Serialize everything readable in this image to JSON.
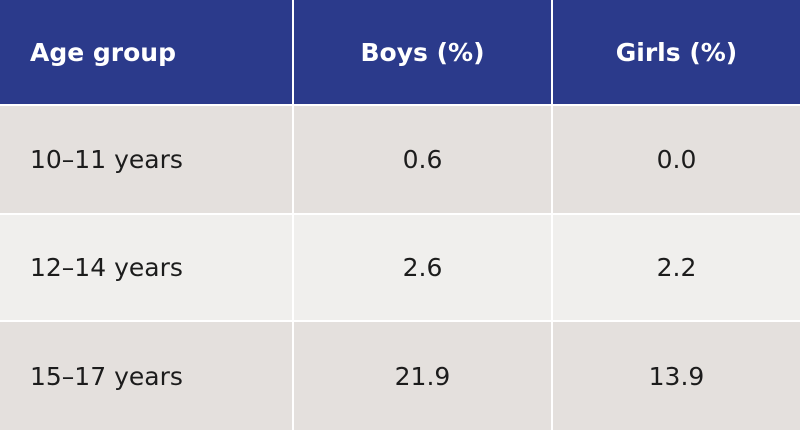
{
  "table": {
    "header": [
      "Age group",
      "Boys (%)",
      "Girls (%)"
    ],
    "rows": [
      [
        "10–11 years",
        "0.6",
        "0.0"
      ],
      [
        "12–14 years",
        "2.6",
        "2.2"
      ],
      [
        "15–17 years",
        "21.9",
        "13.9"
      ]
    ]
  }
}
